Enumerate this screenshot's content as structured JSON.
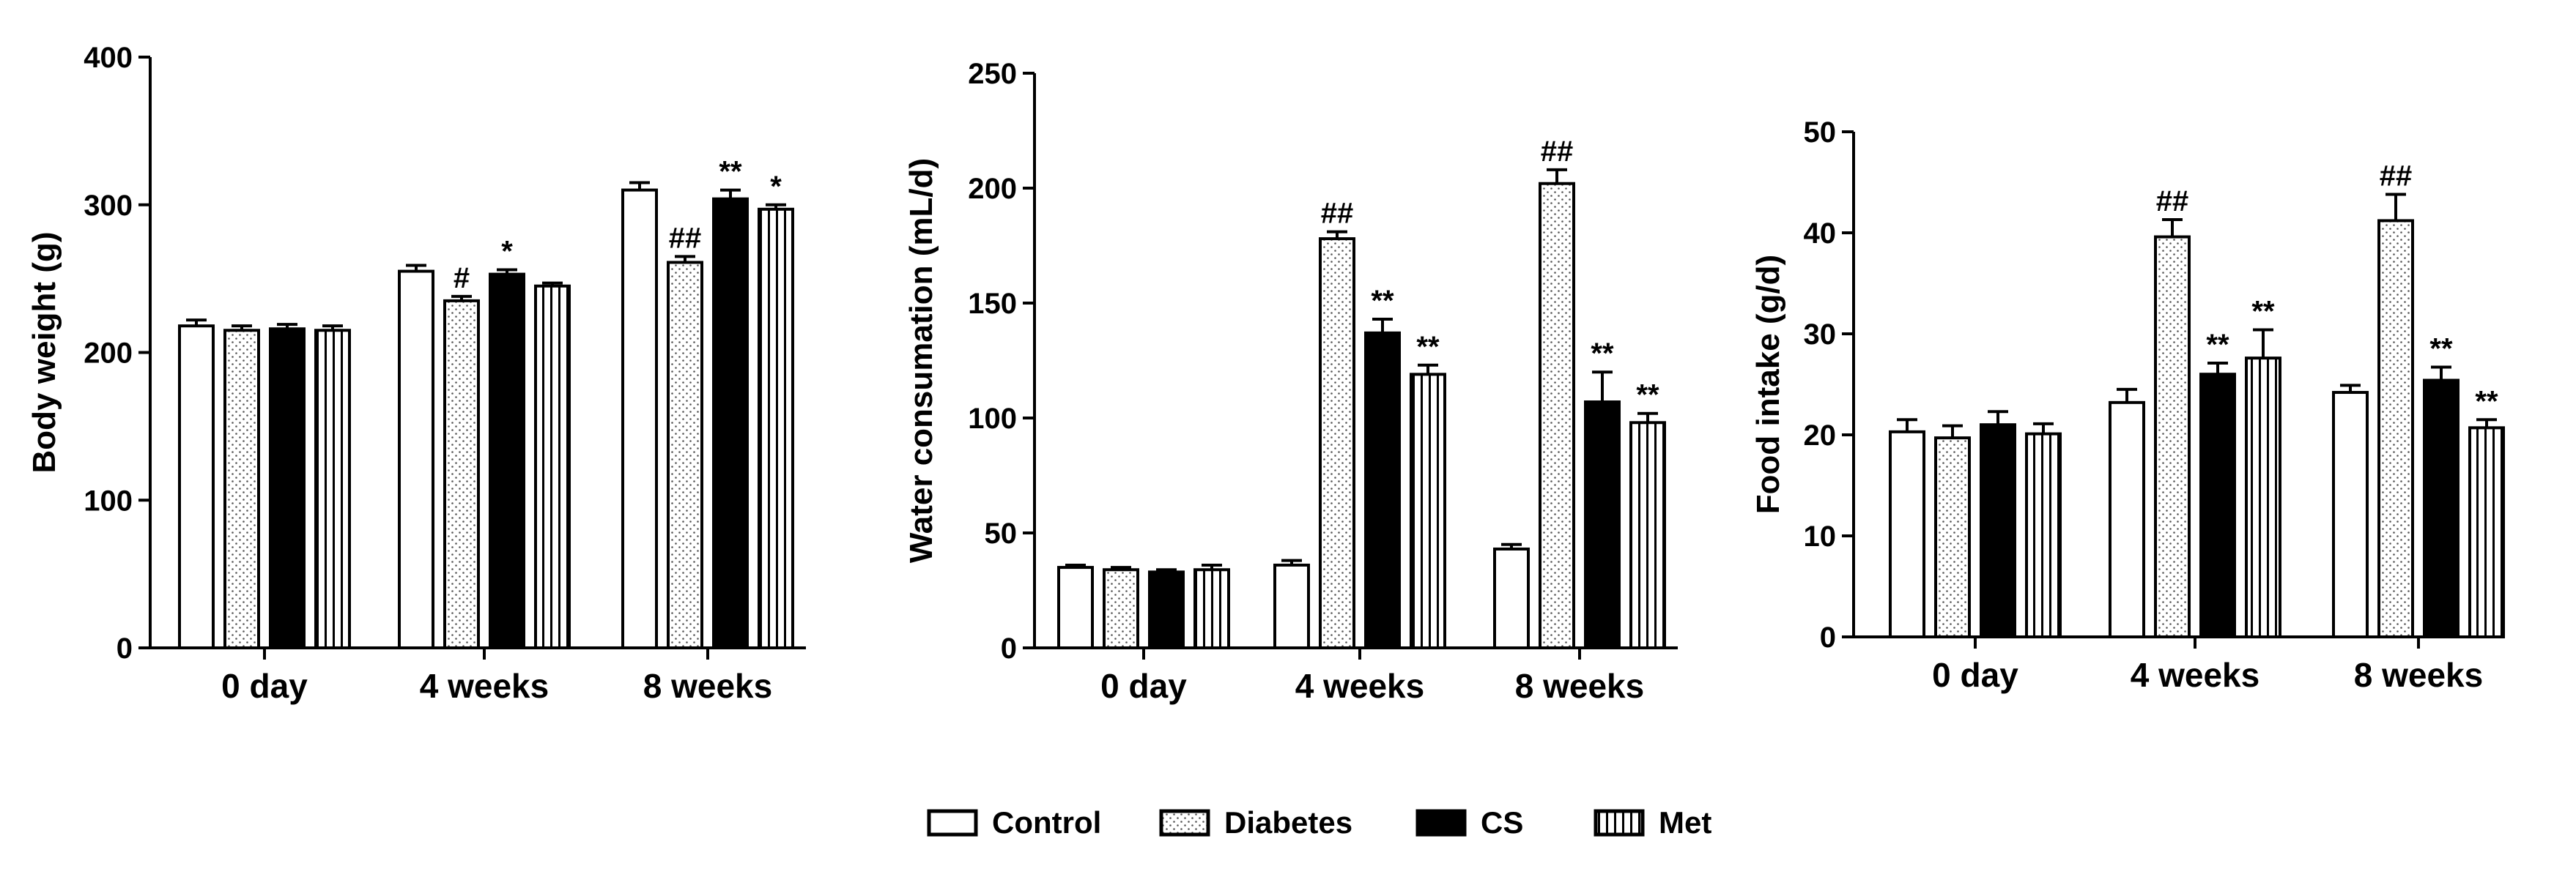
{
  "chart_data": [
    {
      "type": "bar",
      "ylabel": "Body weight (g)",
      "xlabel": "",
      "categories": [
        "0 day",
        "4 weeks",
        "8 weeks"
      ],
      "ylim": [
        0,
        400
      ],
      "yticks": [
        0,
        100,
        200,
        300,
        400
      ],
      "series": [
        {
          "name": "Control",
          "values": [
            218,
            255,
            310
          ],
          "errors": [
            4,
            4,
            5
          ],
          "annotations": [
            "",
            "",
            ""
          ]
        },
        {
          "name": "Diabetes",
          "values": [
            215,
            235,
            261
          ],
          "errors": [
            3,
            3,
            4
          ],
          "annotations": [
            "",
            "#",
            "##"
          ]
        },
        {
          "name": "CS",
          "values": [
            216,
            253,
            304
          ],
          "errors": [
            3,
            3,
            6
          ],
          "annotations": [
            "",
            "*",
            "**"
          ]
        },
        {
          "name": "Met",
          "values": [
            215,
            245,
            297
          ],
          "errors": [
            3,
            2,
            3
          ],
          "annotations": [
            "",
            "",
            "*"
          ]
        }
      ]
    },
    {
      "type": "bar",
      "ylabel": "Water consumation (mL/d)",
      "xlabel": "",
      "categories": [
        "0 day",
        "4 weeks",
        "8 weeks"
      ],
      "ylim": [
        0,
        250
      ],
      "yticks": [
        0,
        50,
        100,
        150,
        200,
        250
      ],
      "series": [
        {
          "name": "Control",
          "values": [
            35,
            36,
            43
          ],
          "errors": [
            1,
            2,
            2
          ],
          "annotations": [
            "",
            "",
            ""
          ]
        },
        {
          "name": "Diabetes",
          "values": [
            34,
            178,
            202
          ],
          "errors": [
            1,
            3,
            6
          ],
          "annotations": [
            "",
            "##",
            "##"
          ]
        },
        {
          "name": "CS",
          "values": [
            33,
            137,
            107
          ],
          "errors": [
            1,
            6,
            13
          ],
          "annotations": [
            "",
            "**",
            "**"
          ]
        },
        {
          "name": "Met",
          "values": [
            34,
            119,
            98
          ],
          "errors": [
            2,
            4,
            4
          ],
          "annotations": [
            "",
            "**",
            "**"
          ]
        }
      ]
    },
    {
      "type": "bar",
      "ylabel": "Food intake (g/d)",
      "xlabel": "",
      "categories": [
        "0 day",
        "4 weeks",
        "8 weeks"
      ],
      "ylim": [
        0,
        50
      ],
      "yticks": [
        0,
        10,
        20,
        30,
        40,
        50
      ],
      "series": [
        {
          "name": "Control",
          "values": [
            20.3,
            23.2,
            24.2
          ],
          "errors": [
            1.2,
            1.3,
            0.7
          ],
          "annotations": [
            "",
            "",
            ""
          ]
        },
        {
          "name": "Diabetes",
          "values": [
            19.7,
            39.6,
            41.2
          ],
          "errors": [
            1.2,
            1.7,
            2.6
          ],
          "annotations": [
            "",
            "##",
            "##"
          ]
        },
        {
          "name": "CS",
          "values": [
            21.0,
            26.0,
            25.4
          ],
          "errors": [
            1.3,
            1.1,
            1.3
          ],
          "annotations": [
            "",
            "**",
            "**"
          ]
        },
        {
          "name": "Met",
          "values": [
            20.1,
            27.6,
            20.7
          ],
          "errors": [
            1.0,
            2.8,
            0.8
          ],
          "annotations": [
            "",
            "**",
            "**"
          ]
        }
      ]
    }
  ],
  "legend": {
    "placement": "bottom-center",
    "items": [
      {
        "label": "Control",
        "pattern": "white"
      },
      {
        "label": "Diabetes",
        "pattern": "dots"
      },
      {
        "label": "CS",
        "pattern": "black"
      },
      {
        "label": "Met",
        "pattern": "vertical-stripes"
      }
    ]
  }
}
